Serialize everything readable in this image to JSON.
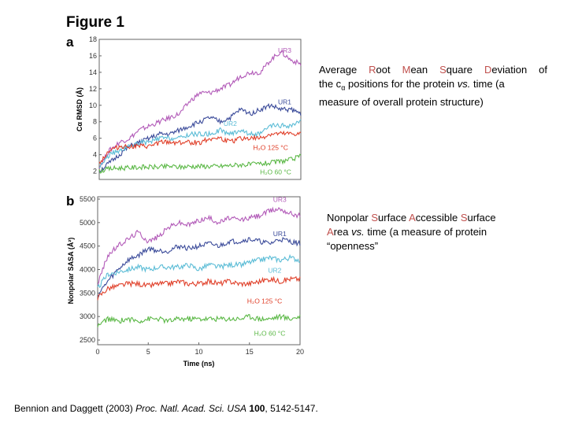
{
  "figure": {
    "title": "Figure 1",
    "panel_a_label": "a",
    "panel_b_label": "b"
  },
  "descriptions": {
    "a": {
      "w1a": "Average ",
      "w1b": "R",
      "w1c": "oot ",
      "w2b": "M",
      "w2c": "ean ",
      "w3b": "S",
      "w3c": "quare ",
      "w4b": "D",
      "w4c": "eviation of",
      "line2a": "the c",
      "line2sub": "α",
      "line2b": " positions for the protein ",
      "line2vs": "vs.",
      "line2c": " time (a",
      "line3": "measure of overall protein structure)"
    },
    "b": {
      "n1": "Nonpolar ",
      "s1": "S",
      "s1r": "urface ",
      "a1": "A",
      "a1r": "ccessible ",
      "s2": "S",
      "s2r": "urface",
      "a2": "A",
      "a2r": "rea ",
      "vs": "vs.",
      "rest": " time (a measure of protein",
      "line3": "“openness”"
    }
  },
  "citation": {
    "authors": "Bennion and Daggett (2003) ",
    "journal": "Proc. Natl. Acad. Sci. USA",
    "volume": " 100",
    "pages": ", 5142-5147."
  },
  "colors": {
    "UR3": "#b25ab8",
    "UR1": "#3b4b9a",
    "UR2": "#5bbcd6",
    "H2O_125": "#e0402a",
    "H2O_60": "#5bb846",
    "label_text": "#ffffff",
    "highlight": "#c0504d"
  },
  "chart_data": [
    {
      "type": "line",
      "panel": "a",
      "xlabel": "",
      "ylabel": "Cα RMSD (Å)",
      "xlim": [
        0,
        20
      ],
      "ylim": [
        1,
        18
      ],
      "yticks": [
        2,
        4,
        6,
        8,
        10,
        12,
        14,
        16,
        18
      ],
      "series": [
        {
          "name": "UR3",
          "x": [
            0,
            1,
            2,
            3,
            4,
            5,
            6,
            7,
            8,
            9,
            10,
            11,
            12,
            13,
            14,
            15,
            16,
            17,
            18,
            19,
            20
          ],
          "values": [
            2.5,
            4.5,
            5.5,
            6,
            7,
            7.5,
            8,
            8.5,
            9,
            10.5,
            11.5,
            11.5,
            12,
            12.5,
            13.5,
            14,
            14,
            15.5,
            16.5,
            15.5,
            15
          ]
        },
        {
          "name": "UR1",
          "x": [
            0,
            1,
            2,
            3,
            4,
            5,
            6,
            7,
            8,
            9,
            10,
            11,
            12,
            13,
            14,
            15,
            16,
            17,
            18,
            19,
            20
          ],
          "values": [
            2,
            3,
            4,
            5,
            5.5,
            6,
            6.5,
            6.5,
            7,
            7.5,
            8,
            8.5,
            8,
            8.5,
            9.5,
            9,
            9.5,
            10,
            9.5,
            9.5,
            9
          ]
        },
        {
          "name": "UR2",
          "x": [
            0,
            1,
            2,
            3,
            4,
            5,
            6,
            7,
            8,
            9,
            10,
            11,
            12,
            13,
            14,
            15,
            16,
            17,
            18,
            19,
            20
          ],
          "values": [
            2.5,
            4,
            4.5,
            5,
            5.5,
            5.5,
            6,
            6,
            6,
            6.5,
            6.5,
            6.5,
            7,
            6.5,
            7,
            6.5,
            6.5,
            7.5,
            7.5,
            7.5,
            8
          ]
        },
        {
          "name": "H₂O 125 °C",
          "x": [
            0,
            1,
            2,
            3,
            4,
            5,
            6,
            7,
            8,
            9,
            10,
            11,
            12,
            13,
            14,
            15,
            16,
            17,
            18,
            19,
            20
          ],
          "values": [
            3,
            4.5,
            5,
            5,
            5,
            5,
            5.5,
            5.5,
            5.5,
            5.5,
            5.5,
            6,
            6,
            5.5,
            6,
            6,
            6,
            6.5,
            6.5,
            6.5,
            6.5
          ]
        },
        {
          "name": "H₂O 60 °C",
          "x": [
            0,
            1,
            2,
            3,
            4,
            5,
            6,
            7,
            8,
            9,
            10,
            11,
            12,
            13,
            14,
            15,
            16,
            17,
            18,
            19,
            20
          ],
          "values": [
            2,
            2.3,
            2.4,
            2.4,
            2.5,
            2.5,
            2.5,
            2.6,
            2.5,
            2.6,
            2.6,
            2.6,
            2.6,
            2.7,
            2.8,
            2.8,
            2.9,
            3,
            3.2,
            3.4,
            3.8
          ]
        }
      ]
    },
    {
      "type": "line",
      "panel": "b",
      "xlabel": "Time (ns)",
      "ylabel": "Nonpolar SASA (Å²)",
      "xlim": [
        0,
        20
      ],
      "ylim": [
        2400,
        5550
      ],
      "xticks": [
        0,
        5,
        10,
        15,
        20
      ],
      "yticks": [
        2500,
        3000,
        3500,
        4000,
        4500,
        5000,
        5500
      ],
      "series": [
        {
          "name": "UR3",
          "x": [
            0,
            1,
            2,
            3,
            4,
            5,
            6,
            7,
            8,
            9,
            10,
            11,
            12,
            13,
            14,
            15,
            16,
            17,
            18,
            19,
            20
          ],
          "values": [
            3700,
            4300,
            4500,
            4650,
            4800,
            4600,
            4700,
            4900,
            5000,
            4950,
            5050,
            5100,
            5000,
            5100,
            5050,
            5100,
            5150,
            5250,
            5300,
            5200,
            5150
          ]
        },
        {
          "name": "UR1",
          "x": [
            0,
            1,
            2,
            3,
            4,
            5,
            6,
            7,
            8,
            9,
            10,
            11,
            12,
            13,
            14,
            15,
            16,
            17,
            18,
            19,
            20
          ],
          "values": [
            3450,
            3750,
            4000,
            4200,
            4300,
            4450,
            4400,
            4400,
            4500,
            4450,
            4500,
            4550,
            4500,
            4600,
            4600,
            4650,
            4600,
            4550,
            4650,
            4600,
            4550
          ]
        },
        {
          "name": "UR2",
          "x": [
            0,
            1,
            2,
            3,
            4,
            5,
            6,
            7,
            8,
            9,
            10,
            11,
            12,
            13,
            14,
            15,
            16,
            17,
            18,
            19,
            20
          ],
          "values": [
            3600,
            3900,
            3950,
            4000,
            4050,
            4000,
            4050,
            4050,
            4050,
            4100,
            4000,
            4100,
            4050,
            4100,
            4100,
            4150,
            4200,
            4250,
            4200,
            4250,
            4200
          ]
        },
        {
          "name": "H₂O 125 °C",
          "x": [
            0,
            1,
            2,
            3,
            4,
            5,
            6,
            7,
            8,
            9,
            10,
            11,
            12,
            13,
            14,
            15,
            16,
            17,
            18,
            19,
            20
          ],
          "values": [
            3400,
            3600,
            3650,
            3700,
            3700,
            3650,
            3700,
            3700,
            3750,
            3700,
            3700,
            3750,
            3700,
            3750,
            3700,
            3700,
            3750,
            3800,
            3750,
            3800,
            3800
          ]
        },
        {
          "name": "H₂O 60 °C",
          "x": [
            0,
            1,
            2,
            3,
            4,
            5,
            6,
            7,
            8,
            9,
            10,
            11,
            12,
            13,
            14,
            15,
            16,
            17,
            18,
            19,
            20
          ],
          "values": [
            2800,
            2950,
            2900,
            2950,
            2900,
            2950,
            2950,
            2900,
            2950,
            2950,
            2950,
            2950,
            2950,
            2950,
            2950,
            3000,
            2950,
            2950,
            3000,
            2950,
            3000
          ]
        }
      ]
    }
  ]
}
